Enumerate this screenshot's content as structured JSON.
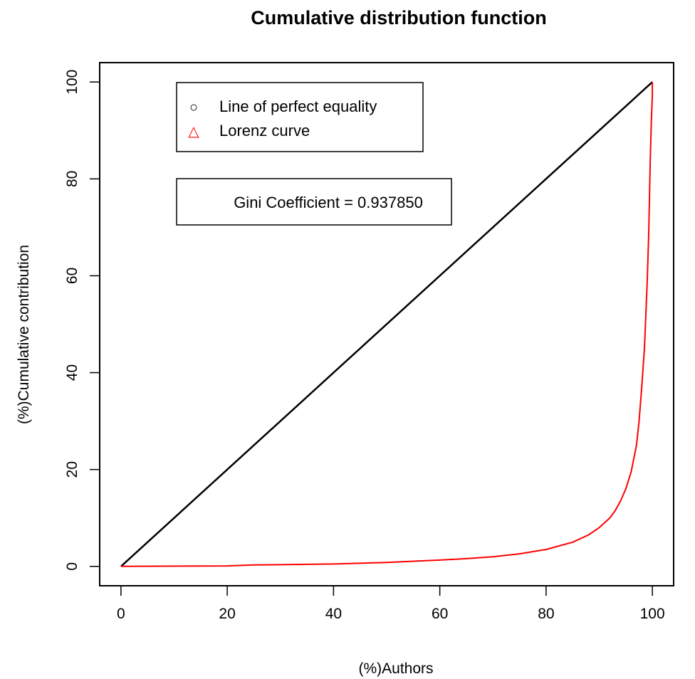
{
  "chart_data": {
    "type": "line",
    "title": "Cumulative distribution function",
    "xlabel": "(%)Authors",
    "ylabel": "(%)Cumulative contribution",
    "xlim": [
      -4,
      104
    ],
    "ylim": [
      -4,
      104
    ],
    "x_ticks": [
      0,
      20,
      40,
      60,
      80,
      100
    ],
    "y_ticks": [
      0,
      20,
      40,
      60,
      80,
      100
    ],
    "x_tick_labels": [
      "0",
      "20",
      "40",
      "60",
      "80",
      "100"
    ],
    "y_tick_labels": [
      "0",
      "20",
      "40",
      "60",
      "80",
      "100"
    ],
    "grid": false,
    "series": [
      {
        "name": "Line of perfect equality",
        "color": "#000000",
        "marker": "circle",
        "x": [
          0,
          100
        ],
        "y": [
          0,
          100
        ]
      },
      {
        "name": "Lorenz curve",
        "color": "#ff0000",
        "marker": "triangle",
        "x": [
          0,
          10,
          20,
          25,
          30,
          40,
          50,
          60,
          65,
          70,
          75,
          80,
          85,
          88,
          90,
          92,
          93,
          94,
          95,
          96,
          97,
          97.5,
          98,
          98.5,
          99,
          99.3,
          99.6,
          99.8,
          100,
          100,
          100
        ],
        "y": [
          0,
          0.05,
          0.1,
          0.3,
          0.35,
          0.5,
          0.8,
          1.3,
          1.6,
          2.0,
          2.6,
          3.5,
          5.0,
          6.5,
          8.0,
          10.0,
          11.5,
          13.5,
          16.0,
          19.5,
          25.0,
          30.0,
          37.0,
          45.0,
          58.0,
          68.0,
          84.0,
          92.0,
          97.0,
          99.0,
          100
        ]
      }
    ],
    "legend": {
      "placement": "top-left",
      "entries": [
        {
          "label": "Line of perfect equality",
          "symbol": "○",
          "color": "#000000"
        },
        {
          "label": "Lorenz curve",
          "symbol": "△",
          "color": "#ff0000"
        }
      ]
    },
    "annotation": "Gini Coefficient = 0.937850"
  }
}
